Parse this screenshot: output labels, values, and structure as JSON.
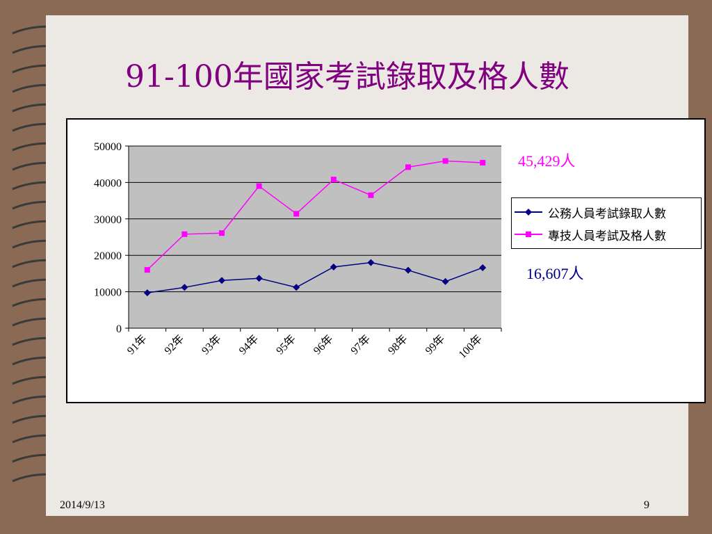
{
  "slide": {
    "title": "91-100年國家考試錄取及格人數",
    "date": "2014/9/13",
    "page_number": "9"
  },
  "colors": {
    "background": "#8a6a55",
    "slide": "#ece8e3",
    "title": "#800080",
    "plot_area": "#c0c0c0",
    "series_blue": "#000080",
    "series_pink": "#ff00ff"
  },
  "chart_data": {
    "type": "line",
    "title": "",
    "xlabel": "",
    "ylabel": "",
    "categories": [
      "91年",
      "92年",
      "93年",
      "94年",
      "95年",
      "96年",
      "97年",
      "98年",
      "99年",
      "100年"
    ],
    "ylim": [
      0,
      50000
    ],
    "yticks": [
      "0",
      "10000",
      "20000",
      "30000",
      "40000",
      "50000"
    ],
    "grid": true,
    "legend_position": "right",
    "series": [
      {
        "name": "公務人員考試錄取人數",
        "color": "#000080",
        "marker": "diamond",
        "values": [
          9700,
          11200,
          13100,
          13700,
          11200,
          16800,
          18000,
          15900,
          12800,
          16607
        ]
      },
      {
        "name": "專技人員考試及格人數",
        "color": "#ff00ff",
        "marker": "square",
        "values": [
          16000,
          25800,
          26100,
          39000,
          31400,
          40800,
          36500,
          44200,
          45900,
          45429
        ]
      }
    ],
    "annotations": {
      "pink": "45,429人",
      "blue": "16,607人"
    }
  }
}
